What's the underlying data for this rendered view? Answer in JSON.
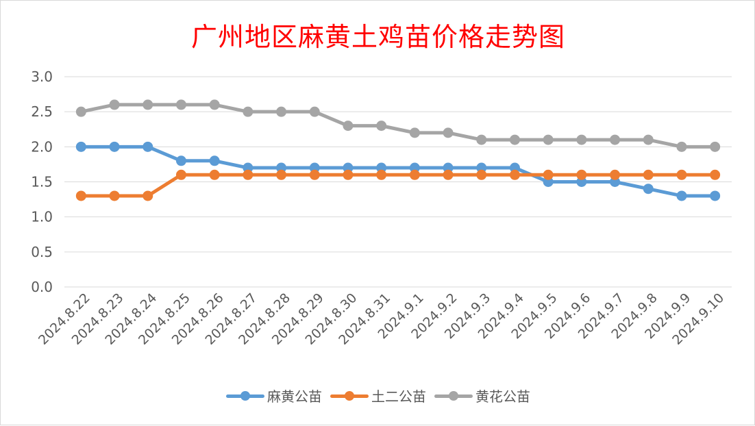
{
  "chart_data": {
    "type": "line",
    "title": "广州地区麻黄土鸡苗价格走势图",
    "xlabel": "",
    "ylabel": "",
    "categories": [
      "2024.8.22",
      "2024.8.23",
      "2024.8.24",
      "2024.8.25",
      "2024.8.26",
      "2024.8.27",
      "2024.8.28",
      "2024.8.29",
      "2024.8.30",
      "2024.8.31",
      "2024.9.1",
      "2024.9.2",
      "2024.9.3",
      "2024.9.4",
      "2024.9.5",
      "2024.9.6",
      "2024.9.7",
      "2024.9.8",
      "2024.9.9",
      "2024.9.10"
    ],
    "ylim": [
      0,
      3
    ],
    "yticks": [
      "0.0",
      "0.5",
      "1.0",
      "1.5",
      "2.0",
      "2.5",
      "3.0"
    ],
    "grid": true,
    "legend_position": "bottom",
    "series": [
      {
        "name": "麻黄公苗",
        "color": "#5b9bd5",
        "values": [
          2.0,
          2.0,
          2.0,
          1.8,
          1.8,
          1.7,
          1.7,
          1.7,
          1.7,
          1.7,
          1.7,
          1.7,
          1.7,
          1.7,
          1.5,
          1.5,
          1.5,
          1.4,
          1.3,
          1.3
        ]
      },
      {
        "name": "土二公苗",
        "color": "#ed7d31",
        "values": [
          1.3,
          1.3,
          1.3,
          1.6,
          1.6,
          1.6,
          1.6,
          1.6,
          1.6,
          1.6,
          1.6,
          1.6,
          1.6,
          1.6,
          1.6,
          1.6,
          1.6,
          1.6,
          1.6,
          1.6
        ]
      },
      {
        "name": "黄花公苗",
        "color": "#a5a5a5",
        "values": [
          2.5,
          2.6,
          2.6,
          2.6,
          2.6,
          2.5,
          2.5,
          2.5,
          2.3,
          2.3,
          2.2,
          2.2,
          2.1,
          2.1,
          2.1,
          2.1,
          2.1,
          2.1,
          2.0,
          2.0
        ]
      }
    ]
  }
}
